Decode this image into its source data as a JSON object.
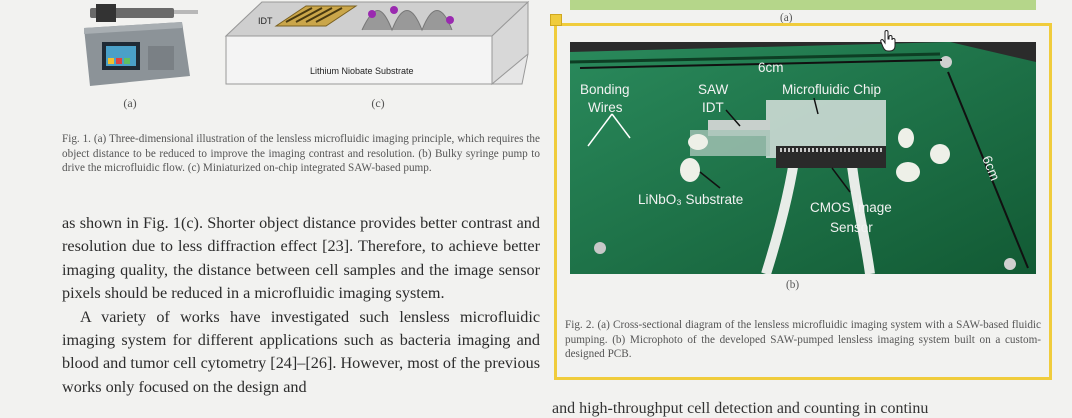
{
  "fig1": {
    "label_a": "(a)",
    "label_c": "(c)",
    "idt_label": "IDT",
    "substrate_label": "Lithium Niobate Substrate",
    "caption": "Fig. 1.   (a) Three-dimensional illustration of the lensless microfluidic imaging principle, which requires the object distance to be reduced to improve the imaging contrast and resolution. (b) Bulky syringe pump to drive the microfluidic flow. (c) Miniaturized on-chip integrated SAW-based pump."
  },
  "body": {
    "para1": "as shown in Fig. 1(c). Shorter object distance provides better contrast and resolution due to less diffraction effect [23]. Therefore, to achieve better imaging quality, the distance between cell samples and the image sensor pixels should be reduced in a microfluidic imaging system.",
    "para2": "A variety of works have investigated such lensless microfluidic imaging system for different applications such as bacteria imaging and blood and tumor cell cytometry [24]–[26]. However, most of the previous works only focused on the design and",
    "right_bottom": "and high-throughput cell detection and counting in continu"
  },
  "fig2": {
    "label_a": "(a)",
    "label_b": "(b)",
    "annotations": {
      "dim_top": "6cm",
      "dim_right": "6cm",
      "bonding_wires": [
        "Bonding",
        "Wires"
      ],
      "saw_idt": [
        "SAW",
        "IDT"
      ],
      "microfluidic_chip": "Microfluidic Chip",
      "linbo3": "LiNbO₃ Substrate",
      "cmos": [
        "CMOS Image",
        "Sensor"
      ]
    },
    "caption": "Fig. 2.   (a) Cross-sectional diagram of the lensless microfluidic imaging system with a SAW-based fluidic pumping. (b) Microphoto of the developed SAW-pumped lensless imaging system built on a custom-designed PCB."
  },
  "colors": {
    "selection": "#f0cc3c",
    "green_bar": "#b5d68a",
    "pcb_green": "#1f7a4e"
  }
}
